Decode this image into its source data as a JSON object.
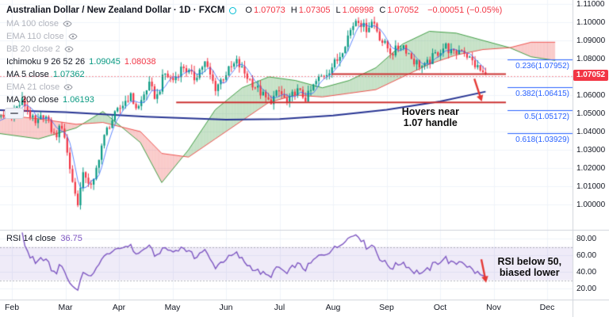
{
  "symbol": {
    "title": "Australian Dollar / New Zealand Dollar · 1D · FXCM",
    "status_color": "#00bcd4"
  },
  "quote": {
    "ohlc": [
      {
        "label": "O",
        "value": "1.07073"
      },
      {
        "label": "H",
        "value": "1.07305"
      },
      {
        "label": "L",
        "value": "1.06998"
      },
      {
        "label": "C",
        "value": "1.07052"
      }
    ],
    "change": "−0.00051 (−0.05%)",
    "last": "1.07052",
    "direction": "down"
  },
  "legend": {
    "indicators": [
      {
        "name": "MA 100 close",
        "hidden": true
      },
      {
        "name": "EMA 110 close",
        "hidden": true
      },
      {
        "name": "BB 20 close 2",
        "hidden": true
      },
      {
        "name": "Ichimoku 9 26 52 26",
        "hidden": false,
        "values": [
          {
            "text": "1.09045",
            "color": "#089981"
          },
          {
            "text": "1.08038",
            "color": "#f23645"
          }
        ]
      },
      {
        "name": "MA 5 close",
        "hidden": false,
        "values": [
          {
            "text": "1.07362",
            "color": "#089981"
          }
        ]
      },
      {
        "name": "EMA 21 close",
        "hidden": true
      },
      {
        "name": "MA 200 close",
        "hidden": false,
        "values": [
          {
            "text": "1.06193",
            "color": "#089981"
          }
        ]
      }
    ]
  },
  "rsi_legend": {
    "name": "RSI 14 close",
    "value": "36.75"
  },
  "price_axis": {
    "labels": [
      "1.11000",
      "1.10000",
      "1.09000",
      "1.08000",
      "1.07000",
      "1.06000",
      "1.05000",
      "1.04000",
      "1.03000",
      "1.02000",
      "1.01000",
      "1.00000"
    ]
  },
  "rsi_axis": {
    "labels": [
      "80.00",
      "60.00",
      "40.00",
      "20.00"
    ]
  },
  "time_axis": {
    "months": [
      "Feb",
      "Mar",
      "Apr",
      "May",
      "Jun",
      "Jul",
      "Aug",
      "Sep",
      "Oct",
      "Nov",
      "Dec"
    ]
  },
  "annotations": {
    "main_note": {
      "lines": [
        "Hovers near",
        "1.07 handle"
      ],
      "t": 7.82,
      "p": 1.048
    },
    "rsi_note": {
      "lines": [
        "RSI below 50,",
        "biased lower"
      ],
      "t": 9.73,
      "v": 47
    },
    "arrows": [
      {
        "pane": "main",
        "from": {
          "t": 8.64,
          "p": 1.069
        },
        "to": {
          "t": 8.78,
          "p": 1.0565
        }
      },
      {
        "pane": "rsi",
        "from": {
          "t": 8.77,
          "v": 55
        },
        "to": {
          "t": 8.86,
          "v": 27
        }
      }
    ]
  },
  "chart_data": {
    "type": "candlestick",
    "title": "AUD/NZD daily with Ichimoku cloud, MA200, horizontal levels, Fibonacci retracement and RSI",
    "x_unit": "months_from_Feb",
    "price_axis_range": [
      0.986,
      1.1128
    ],
    "rsi_axis_range": [
      15,
      85
    ],
    "price_path": [
      [
        -0.5,
        1.043
      ],
      [
        -0.3,
        1.046
      ],
      [
        0,
        1.05
      ],
      [
        0.2,
        1.057
      ],
      [
        0.45,
        1.043
      ],
      [
        0.6,
        1.05
      ],
      [
        0.8,
        1.037
      ],
      [
        0.95,
        1.044
      ],
      [
        1.05,
        1.025
      ],
      [
        1.22,
        1.0
      ],
      [
        1.35,
        1.018
      ],
      [
        1.5,
        1.008
      ],
      [
        1.65,
        1.03
      ],
      [
        1.8,
        1.043
      ],
      [
        2,
        1.052
      ],
      [
        2.2,
        1.06
      ],
      [
        2.35,
        1.052
      ],
      [
        2.55,
        1.066
      ],
      [
        2.7,
        1.058
      ],
      [
        2.85,
        1.072
      ],
      [
        3,
        1.068
      ],
      [
        3.2,
        1.076
      ],
      [
        3.4,
        1.069
      ],
      [
        3.6,
        1.078
      ],
      [
        3.8,
        1.064
      ],
      [
        4,
        1.072
      ],
      [
        4.2,
        1.078
      ],
      [
        4.4,
        1.07
      ],
      [
        4.6,
        1.063
      ],
      [
        4.8,
        1.056
      ],
      [
        5,
        1.062
      ],
      [
        5.15,
        1.055
      ],
      [
        5.3,
        1.063
      ],
      [
        5.5,
        1.058
      ],
      [
        5.7,
        1.068
      ],
      [
        5.9,
        1.073
      ],
      [
        6.1,
        1.08
      ],
      [
        6.3,
        1.094
      ],
      [
        6.45,
        1.103
      ],
      [
        6.6,
        1.096
      ],
      [
        6.75,
        1.101
      ],
      [
        6.9,
        1.09
      ],
      [
        7.1,
        1.083
      ],
      [
        7.3,
        1.088
      ],
      [
        7.5,
        1.079
      ],
      [
        7.7,
        1.075
      ],
      [
        7.9,
        1.082
      ],
      [
        8.1,
        1.087
      ],
      [
        8.25,
        1.082
      ],
      [
        8.4,
        1.086
      ],
      [
        8.55,
        1.08
      ],
      [
        8.7,
        1.075
      ],
      [
        8.85,
        1.0705
      ]
    ],
    "ichimoku_cloud": {
      "senkou_a": [
        [
          -0.5,
          1.04
        ],
        [
          0.5,
          1.036
        ],
        [
          1.2,
          1.042
        ],
        [
          1.7,
          1.051
        ],
        [
          2.4,
          1.034
        ],
        [
          2.8,
          1.012
        ],
        [
          3.3,
          1.03
        ],
        [
          3.8,
          1.052
        ],
        [
          4.3,
          1.064
        ],
        [
          4.8,
          1.07
        ],
        [
          5.3,
          1.068
        ],
        [
          5.8,
          1.064
        ],
        [
          6.3,
          1.068
        ],
        [
          6.8,
          1.075
        ],
        [
          7.3,
          1.088
        ],
        [
          7.8,
          1.095
        ],
        [
          8.3,
          1.094
        ],
        [
          8.8,
          1.09
        ],
        [
          9.3,
          1.086
        ],
        [
          9.7,
          1.081
        ],
        [
          10.15,
          1.079
        ]
      ],
      "senkou_b": [
        [
          -0.5,
          1.05
        ],
        [
          0.5,
          1.047
        ],
        [
          1.2,
          1.044
        ],
        [
          1.7,
          1.045
        ],
        [
          2.4,
          1.04
        ],
        [
          2.8,
          1.028
        ],
        [
          3.3,
          1.026
        ],
        [
          3.8,
          1.036
        ],
        [
          4.3,
          1.046
        ],
        [
          4.8,
          1.056
        ],
        [
          5.3,
          1.06
        ],
        [
          5.8,
          1.059
        ],
        [
          6.3,
          1.061
        ],
        [
          6.8,
          1.063
        ],
        [
          7.3,
          1.07
        ],
        [
          7.8,
          1.077
        ],
        [
          8.3,
          1.082
        ],
        [
          8.8,
          1.085
        ],
        [
          9.3,
          1.086
        ],
        [
          9.7,
          1.089
        ],
        [
          10.15,
          1.089
        ]
      ]
    },
    "ma200": [
      [
        -0.5,
        1.052
      ],
      [
        1,
        1.0507
      ],
      [
        2.5,
        1.0482
      ],
      [
        4,
        1.0465
      ],
      [
        5,
        1.0468
      ],
      [
        6,
        1.0488
      ],
      [
        7,
        1.052
      ],
      [
        8,
        1.0565
      ],
      [
        8.85,
        1.0619
      ]
    ],
    "candles": {
      "t_start": -0.5,
      "t_end": 8.85,
      "count": 190,
      "noise": 0.0026,
      "wick": 0.0032
    },
    "levels": {
      "resistance": {
        "price": 1.0715,
        "t1": 5.97,
        "t2": 9.23
      },
      "support": {
        "price": 1.056,
        "t1": 3.07,
        "t2": 9.23
      }
    },
    "fib": {
      "t1": 9.26,
      "levels": [
        {
          "label": "0.236(1.07952)",
          "price": 1.07952
        },
        {
          "label": "0.382(1.06415)",
          "price": 1.06415
        },
        {
          "label": "0.5(1.05172)",
          "price": 1.05172
        },
        {
          "label": "0.618(1.03929)",
          "price": 1.03929
        }
      ]
    },
    "rsi": {
      "period": 14,
      "upper": 70,
      "lower": 30,
      "last": 36.75
    },
    "colors": {
      "up": "#089981",
      "down": "#f23645",
      "cloud_bull": "rgba(67,160,71,0.30)",
      "cloud_bear": "rgba(239,83,80,0.30)",
      "senkou_a": "#43a047",
      "senkou_b": "#ef5350",
      "ma200": "#283593",
      "ma5": "#2962ff",
      "level": "#cc3333",
      "fib": "#2962ff",
      "rsi": "#7e57c2",
      "rsi_band": "rgba(126,87,194,0.12)",
      "arrow": "#e53935",
      "grid": "#f0f3fa",
      "divider": "#d1d4dc",
      "muted": "#9598a1",
      "badge_bg": "#f23645"
    }
  }
}
